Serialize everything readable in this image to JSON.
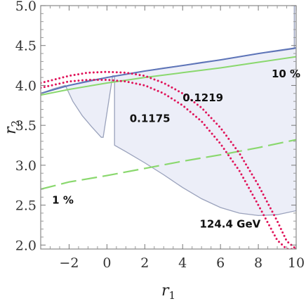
{
  "chart_data": {
    "type": "line",
    "xlabel": {
      "var": "r",
      "sub": "1"
    },
    "ylabel": {
      "var": "r",
      "sub": "2"
    },
    "xlim": [
      -3.5,
      10
    ],
    "ylim": [
      1.95,
      5.0
    ],
    "xticks": [
      -2,
      0,
      2,
      4,
      6,
      8,
      10
    ],
    "xtick_labels": [
      "−2",
      "0",
      "2",
      "4",
      "6",
      "8",
      "10"
    ],
    "yticks": [
      2.0,
      2.5,
      3.0,
      3.5,
      4.0,
      4.5,
      5.0
    ],
    "ytick_labels": [
      "2.0",
      "2.5",
      "3.0",
      "3.5",
      "4.0",
      "4.5",
      "5.0"
    ],
    "grid": false,
    "colors": {
      "region_fill": "#eceef8",
      "region_edge": "#9aa2bc",
      "blue_line": "#5d74b8",
      "green": "#8ad86e",
      "red_dotted": "#e0145a",
      "frame": "#888888"
    },
    "region": {
      "name": "",
      "outline": [
        [
          -3.5,
          3.9
        ],
        [
          -2.8,
          3.96
        ],
        [
          -2.0,
          4.0
        ],
        [
          -1.0,
          4.06
        ],
        [
          0.0,
          4.1
        ],
        [
          1.0,
          4.14
        ],
        [
          2.0,
          4.18
        ],
        [
          3.0,
          4.22
        ],
        [
          4.0,
          4.25
        ],
        [
          5.0,
          4.29
        ],
        [
          6.0,
          4.32
        ],
        [
          7.0,
          4.36
        ],
        [
          8.0,
          4.4
        ],
        [
          9.0,
          4.43
        ],
        [
          9.9,
          4.46
        ],
        [
          9.9,
          5.0
        ],
        [
          10.0,
          5.0
        ],
        [
          10.0,
          2.43
        ],
        [
          9.0,
          2.38
        ],
        [
          8.0,
          2.37
        ],
        [
          7.0,
          2.4
        ],
        [
          6.0,
          2.47
        ],
        [
          5.0,
          2.58
        ],
        [
          4.0,
          2.72
        ],
        [
          3.0,
          2.88
        ],
        [
          2.0,
          3.03
        ],
        [
          1.0,
          3.17
        ],
        [
          0.4,
          3.25
        ],
        [
          0.4,
          4.12
        ],
        [
          0.3,
          4.12
        ],
        [
          -0.2,
          3.35
        ],
        [
          -0.3,
          3.35
        ],
        [
          -0.8,
          3.48
        ],
        [
          -1.3,
          3.62
        ],
        [
          -1.8,
          3.8
        ],
        [
          -2.2,
          4.0
        ],
        [
          -2.8,
          3.96
        ],
        [
          -3.5,
          3.9
        ]
      ]
    },
    "series": [
      {
        "style": "solid",
        "color": "#5d74b8",
        "x": [
          -3.5,
          -2.0,
          0.0,
          2.0,
          4.0,
          6.0,
          8.0,
          10.0
        ],
        "y": [
          3.9,
          4.0,
          4.1,
          4.18,
          4.25,
          4.32,
          4.4,
          4.47
        ]
      },
      {
        "style": "solid",
        "color": "#8ad86e",
        "x": [
          -3.5,
          -2.0,
          0.0,
          2.0,
          4.0,
          6.0,
          8.0,
          10.0
        ],
        "y": [
          3.88,
          3.95,
          4.03,
          4.1,
          4.16,
          4.22,
          4.29,
          4.36
        ]
      },
      {
        "style": "dashed",
        "color": "#8ad86e",
        "x": [
          -3.5,
          -2.0,
          0.0,
          2.0,
          4.0,
          6.0,
          8.0,
          10.0
        ],
        "y": [
          2.7,
          2.79,
          2.87,
          2.96,
          3.05,
          3.13,
          3.22,
          3.32
        ]
      },
      {
        "style": "dotted",
        "color": "#e0145a",
        "x": [
          -3.5,
          -2.0,
          -1.0,
          0.0,
          1.0,
          2.0,
          3.0,
          4.0,
          5.0,
          6.0,
          7.0,
          8.0,
          9.0,
          9.5,
          10.0
        ],
        "y": [
          4.03,
          4.12,
          4.16,
          4.17,
          4.16,
          4.12,
          4.03,
          3.9,
          3.72,
          3.47,
          3.15,
          2.75,
          2.3,
          2.05,
          1.95
        ]
      },
      {
        "style": "dotted",
        "color": "#e0145a",
        "x": [
          -3.5,
          -2.0,
          -1.0,
          0.0,
          1.0,
          2.0,
          3.0,
          4.0,
          5.0,
          6.0,
          7.0,
          8.0,
          9.0,
          9.5,
          10.0
        ],
        "y": [
          3.97,
          4.05,
          4.07,
          4.07,
          4.05,
          4.0,
          3.9,
          3.75,
          3.55,
          3.27,
          2.93,
          2.5,
          2.06,
          1.95,
          1.95
        ]
      }
    ],
    "annotations": [
      {
        "text": "10 %",
        "x": 8.7,
        "y": 4.1
      },
      {
        "text": "0.1219",
        "x": 4.0,
        "y": 3.8
      },
      {
        "text": "0.1175",
        "x": 1.2,
        "y": 3.54
      },
      {
        "text": "1 %",
        "x": -2.9,
        "y": 2.52
      },
      {
        "text": "124.4 GeV",
        "x": 4.9,
        "y": 2.22
      }
    ]
  }
}
